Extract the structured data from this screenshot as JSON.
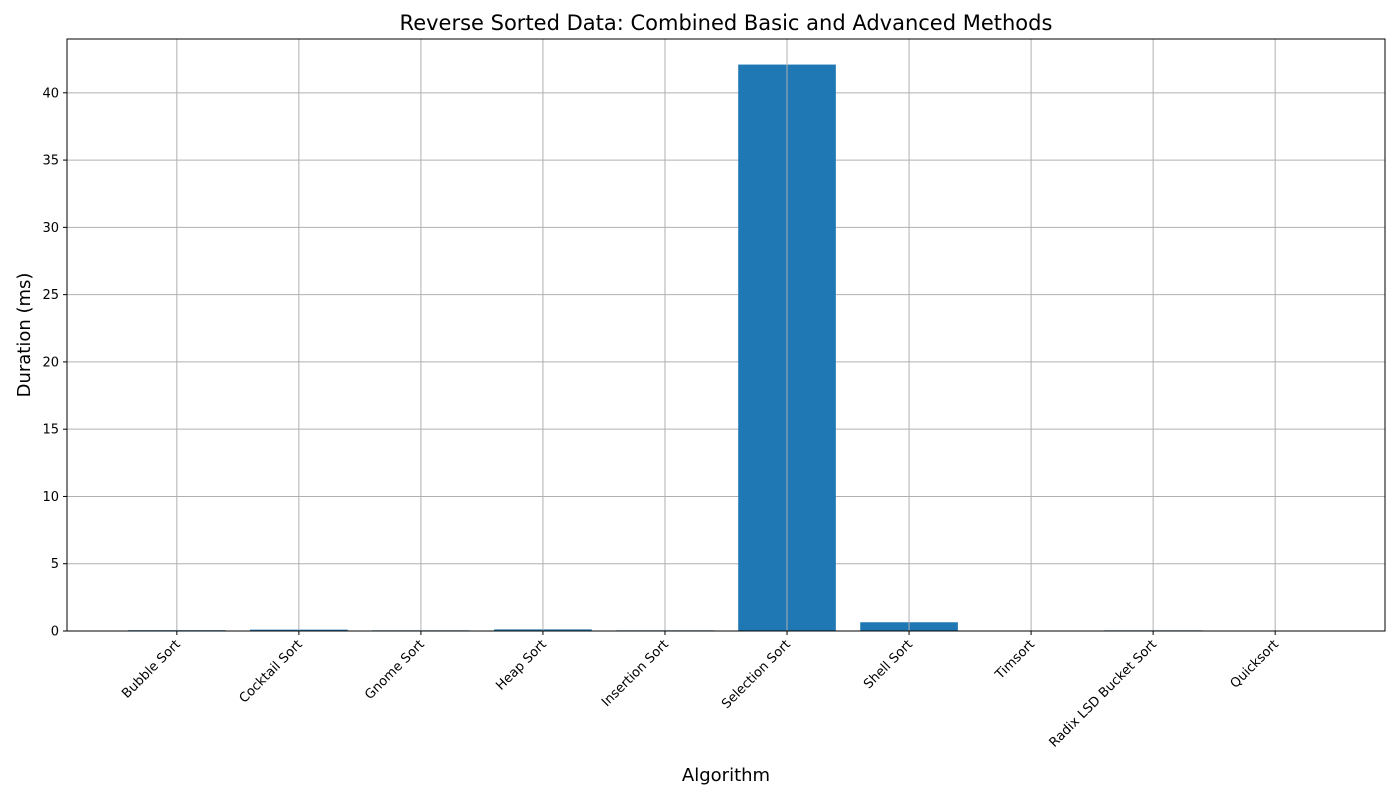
{
  "chart_data": {
    "type": "bar",
    "title": "Reverse Sorted Data: Combined Basic and Advanced Methods",
    "xlabel": "Algorithm",
    "ylabel": "Duration (ms)",
    "categories": [
      "Bubble Sort",
      "Cocktail Sort",
      "Gnome Sort",
      "Heap Sort",
      "Insertion Sort",
      "Selection Sort",
      "Shell Sort",
      "Timsort",
      "Radix LSD Bucket Sort",
      "Quicksort"
    ],
    "values": [
      0.06,
      0.1,
      0.05,
      0.12,
      0.05,
      42.1,
      0.65,
      0.0,
      0.05,
      0.0
    ],
    "yticks": [
      0,
      5,
      10,
      15,
      20,
      25,
      30,
      35,
      40
    ],
    "ylim": [
      0,
      44
    ],
    "grid": true,
    "bar_color": "#1f77b4",
    "grid_color": "#b0b0b0"
  }
}
